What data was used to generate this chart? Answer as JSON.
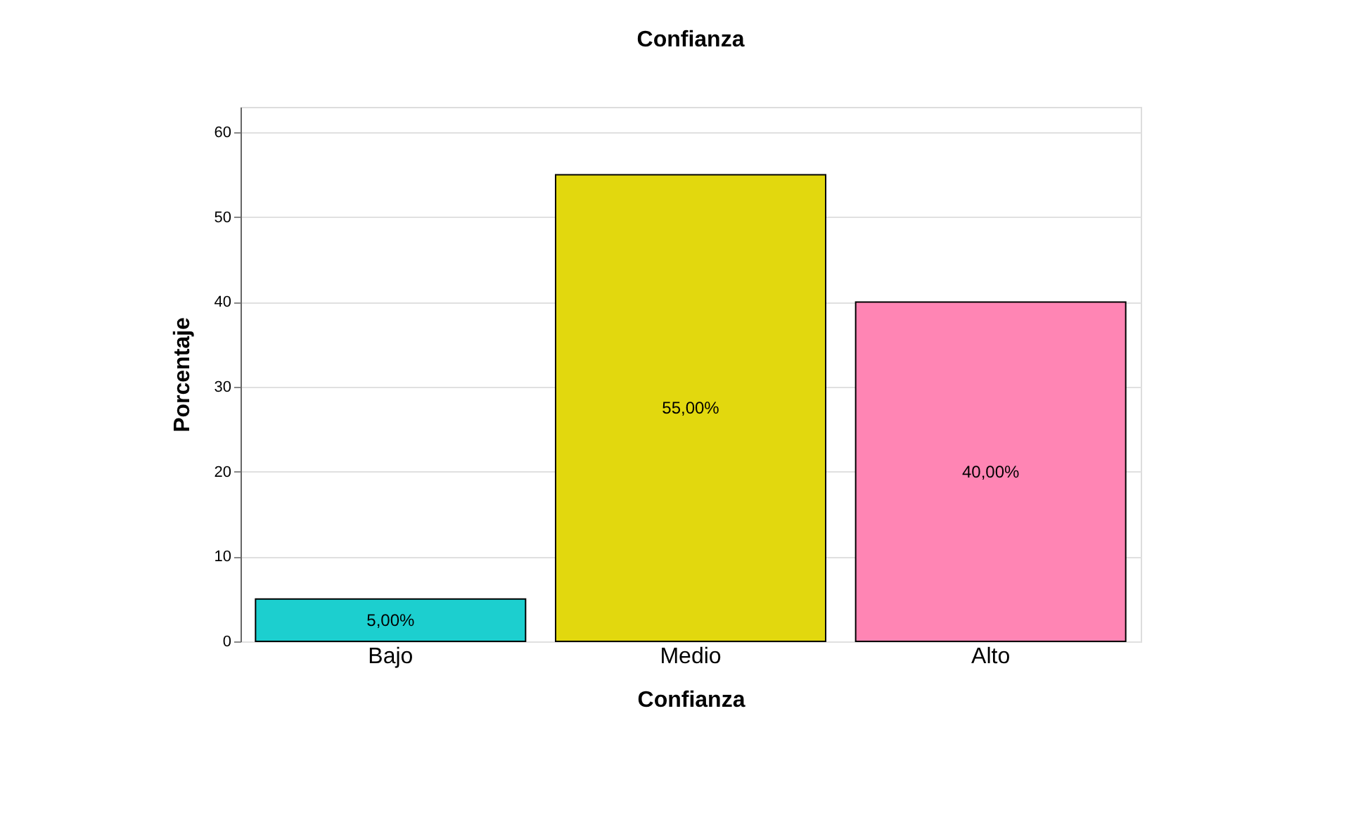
{
  "chart_data": {
    "type": "bar",
    "title": "Confianza",
    "xlabel": "Confianza",
    "ylabel": "Porcentaje",
    "categories": [
      "Bajo",
      "Medio",
      "Alto"
    ],
    "values": [
      5,
      55,
      40
    ],
    "colors": [
      "#1ccfcf",
      "#e2d80e",
      "#ff85b4"
    ],
    "value_labels": [
      "5,00%",
      "55,00%",
      "40,00%"
    ],
    "ylim": [
      0,
      63
    ],
    "yticks": [
      0,
      10,
      20,
      30,
      40,
      50,
      60
    ],
    "grid": "y"
  }
}
